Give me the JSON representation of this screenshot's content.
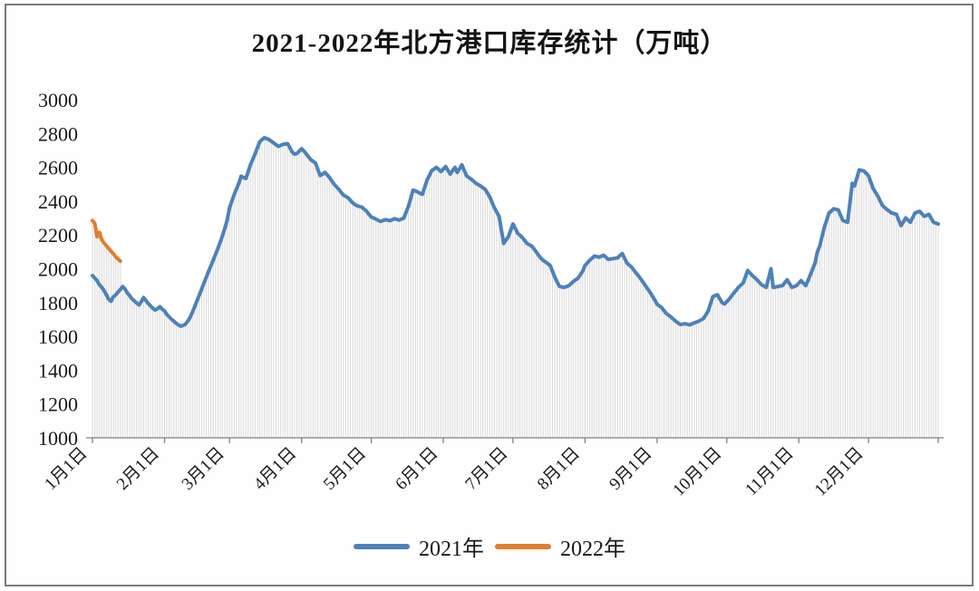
{
  "title": "2021-2022年北方港口库存统计（万吨）",
  "chart_data": {
    "type": "line",
    "title": "2021-2022年北方港口库存统计（万吨）",
    "unit": "万吨",
    "grid": false,
    "legend_position": "bottom",
    "y_axis": {
      "min": 1000,
      "max": 3000,
      "step": 200,
      "tick_labels": [
        "3000",
        "2800",
        "2600",
        "2400",
        "2200",
        "2000",
        "1800",
        "1600",
        "1400",
        "1200",
        "1000"
      ]
    },
    "x_axis": {
      "days_in_year": 365,
      "month_start_days": [
        1,
        32,
        60,
        91,
        121,
        152,
        182,
        213,
        244,
        274,
        305,
        335
      ],
      "axis_end_day": 365,
      "tick_labels": [
        "1月1日",
        "2月1日",
        "3月1日",
        "4月1日",
        "5月1日",
        "6月1日",
        "7月1日",
        "8月1日",
        "9月1日",
        "10月1日",
        "11月1日",
        "12月1日"
      ]
    },
    "colors": {
      "series_2021": "#4e81b8",
      "series_2022": "#e07f2e",
      "droplines": "#d9d9d9",
      "axis": "#808080"
    },
    "legend": [
      {
        "label": "2021年",
        "color": "#4e81b8"
      },
      {
        "label": "2022年",
        "color": "#e07f2e"
      }
    ],
    "series": [
      {
        "name": "2021年",
        "color": "#4e81b8",
        "start_day": 1,
        "values": [
          1960,
          1945,
          1930,
          1905,
          1890,
          1870,
          1845,
          1820,
          1808,
          1835,
          1845,
          1862,
          1878,
          1895,
          1880,
          1858,
          1840,
          1822,
          1810,
          1798,
          1786,
          1805,
          1830,
          1812,
          1795,
          1780,
          1766,
          1756,
          1764,
          1776,
          1762,
          1750,
          1730,
          1716,
          1702,
          1690,
          1678,
          1668,
          1660,
          1665,
          1672,
          1690,
          1712,
          1742,
          1776,
          1810,
          1845,
          1880,
          1916,
          1950,
          1986,
          2018,
          2052,
          2086,
          2120,
          2158,
          2196,
          2240,
          2290,
          2360,
          2400,
          2440,
          2472,
          2506,
          2548,
          2540,
          2534,
          2572,
          2615,
          2648,
          2680,
          2716,
          2750,
          2764,
          2775,
          2770,
          2764,
          2754,
          2744,
          2734,
          2724,
          2730,
          2736,
          2738,
          2740,
          2715,
          2690,
          2678,
          2682,
          2696,
          2710,
          2696,
          2680,
          2662,
          2645,
          2635,
          2625,
          2588,
          2552,
          2560,
          2570,
          2556,
          2540,
          2520,
          2500,
          2485,
          2470,
          2452,
          2436,
          2428,
          2420,
          2405,
          2390,
          2380,
          2372,
          2368,
          2364,
          2352,
          2340,
          2322,
          2306,
          2300,
          2294,
          2286,
          2280,
          2285,
          2290,
          2288,
          2284,
          2290,
          2296,
          2292,
          2288,
          2294,
          2300,
          2335,
          2370,
          2418,
          2465,
          2460,
          2454,
          2446,
          2440,
          2482,
          2525,
          2552,
          2580,
          2590,
          2600,
          2588,
          2575,
          2590,
          2605,
          2582,
          2560,
          2580,
          2600,
          2570,
          2592,
          2615,
          2582,
          2550,
          2540,
          2530,
          2518,
          2506,
          2498,
          2490,
          2480,
          2470,
          2448,
          2425,
          2392,
          2360,
          2335,
          2310,
          2230,
          2150,
          2170,
          2190,
          2228,
          2265,
          2238,
          2210,
          2198,
          2185,
          2168,
          2150,
          2142,
          2135,
          2118,
          2100,
          2080,
          2062,
          2050,
          2040,
          2030,
          2020,
          1985,
          1950,
          1922,
          1896,
          1892,
          1890,
          1895,
          1900,
          1912,
          1925,
          1935,
          1945,
          1965,
          1985,
          2020,
          2035,
          2050,
          2062,
          2075,
          2072,
          2068,
          2074,
          2080,
          2068,
          2056,
          2058,
          2060,
          2062,
          2065,
          2078,
          2090,
          2062,
          2035,
          2022,
          2010,
          1992,
          1975,
          1958,
          1940,
          1920,
          1900,
          1880,
          1860,
          1838,
          1815,
          1790,
          1780,
          1770,
          1752,
          1735,
          1725,
          1715,
          1702,
          1690,
          1680,
          1670,
          1672,
          1675,
          1672,
          1668,
          1674,
          1680,
          1685,
          1690,
          1698,
          1706,
          1728,
          1750,
          1792,
          1835,
          1842,
          1846,
          1822,
          1800,
          1792,
          1806,
          1820,
          1838,
          1856,
          1872,
          1890,
          1902,
          1915,
          1952,
          1990,
          1975,
          1960,
          1948,
          1935,
          1920,
          1905,
          1898,
          1890,
          1945,
          2000,
          1890,
          1892,
          1895,
          1898,
          1900,
          1918,
          1935,
          1912,
          1890,
          1895,
          1900,
          1915,
          1930,
          1915,
          1900,
          1932,
          1965,
          2000,
          2035,
          2100,
          2135,
          2190,
          2245,
          2288,
          2330,
          2342,
          2355,
          2352,
          2348,
          2316,
          2285,
          2280,
          2275,
          2390,
          2505,
          2490,
          2538,
          2585,
          2582,
          2578,
          2565,
          2550,
          2512,
          2475,
          2452,
          2430,
          2402,
          2375,
          2362,
          2350,
          2340,
          2330,
          2326,
          2322,
          2288,
          2255,
          2278,
          2300,
          2288,
          2275,
          2302,
          2330,
          2335,
          2340,
          2325,
          2310,
          2316,
          2322,
          2298,
          2275,
          2270,
          2265
        ]
      },
      {
        "name": "2022年",
        "color": "#e07f2e",
        "start_day": 1,
        "values": [
          2285,
          2268,
          2190,
          2215,
          2172,
          2152,
          2136,
          2120,
          2104,
          2088,
          2072,
          2058,
          2045
        ]
      }
    ]
  },
  "legend": {
    "item_2021": "2021年",
    "item_2022": "2022年"
  }
}
